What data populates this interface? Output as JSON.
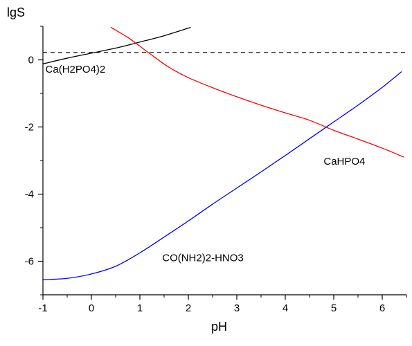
{
  "chart_data": {
    "type": "line",
    "xlabel": "pH",
    "ylabel": "lgS",
    "xlim": [
      -1,
      6.5
    ],
    "ylim": [
      -7,
      1
    ],
    "x_ticks": [
      -1,
      0,
      1,
      2,
      3,
      4,
      5,
      6
    ],
    "y_ticks": [
      -6,
      -4,
      -2,
      0
    ],
    "x_tick_labels": [
      "-1",
      "0",
      "1",
      "2",
      "3",
      "4",
      "5",
      "6"
    ],
    "y_tick_labels": [
      "-6",
      "-4",
      "-2",
      "0"
    ],
    "reference_line": {
      "y": 0.22,
      "style": "dashed",
      "color": "#000000"
    },
    "series": [
      {
        "name": "Ca(H2PO4)2",
        "color": "#000000",
        "x": [
          -1,
          -0.5,
          0,
          0.5,
          1,
          1.5,
          2.05
        ],
        "y": [
          -0.12,
          0.05,
          0.2,
          0.35,
          0.53,
          0.72,
          0.97
        ]
      },
      {
        "name": "CaHPO4",
        "color": "#ff0000",
        "x": [
          0.4,
          0.8,
          1.2,
          1.6,
          2,
          2.5,
          3,
          3.5,
          4,
          4.5,
          5,
          5.5,
          6,
          6.45
        ],
        "y": [
          0.97,
          0.62,
          0.19,
          -0.22,
          -0.53,
          -0.83,
          -1.1,
          -1.35,
          -1.58,
          -1.8,
          -2.1,
          -2.36,
          -2.63,
          -2.9
        ]
      },
      {
        "name": "CO(NH2)2-HNO3",
        "color": "#0000ff",
        "x": [
          -1,
          -0.5,
          0,
          0.5,
          1,
          1.5,
          2,
          2.5,
          3,
          3.5,
          4,
          4.5,
          5,
          5.5,
          6,
          6.4
        ],
        "y": [
          -6.55,
          -6.51,
          -6.38,
          -6.15,
          -5.75,
          -5.28,
          -4.8,
          -4.3,
          -3.82,
          -3.34,
          -2.85,
          -2.35,
          -1.85,
          -1.35,
          -0.82,
          -0.35
        ]
      }
    ],
    "annotations": [
      {
        "text": "Ca(H2PO4)2",
        "x": -0.33,
        "y": -0.38,
        "series": "Ca(H2PO4)2"
      },
      {
        "text": "CaHPO4",
        "x": 5.22,
        "y": -3.12,
        "series": "CaHPO4"
      },
      {
        "text": "CO(NH2)2-HNO3",
        "x": 2.3,
        "y": -6.0,
        "series": "CO(NH2)2-HNO3"
      }
    ]
  }
}
